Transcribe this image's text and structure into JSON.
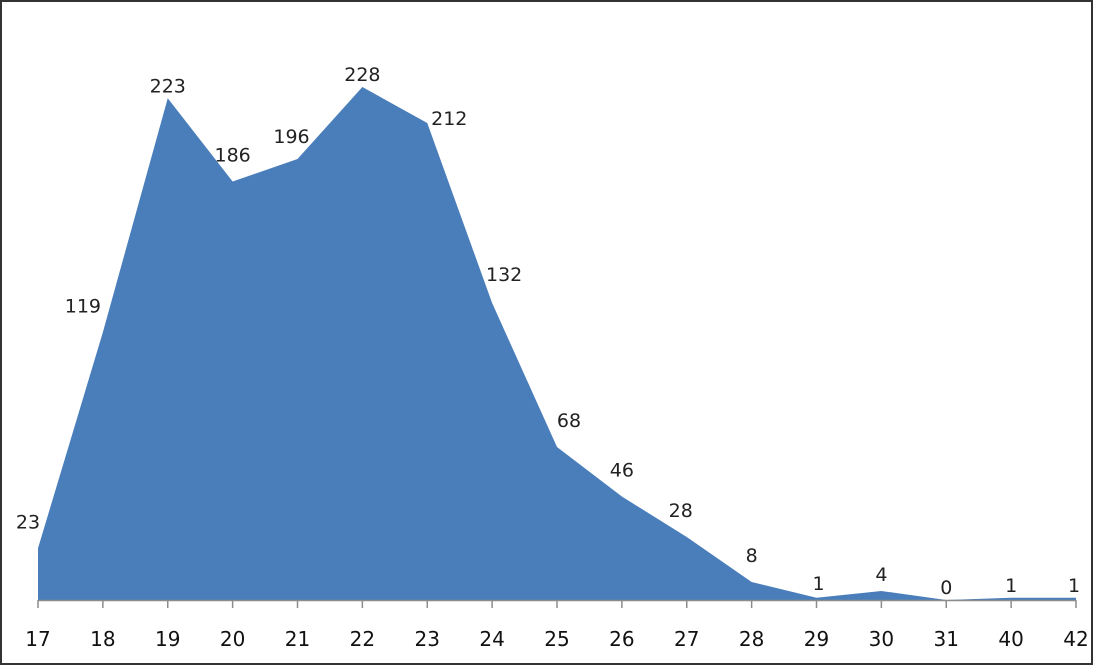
{
  "chart_data": {
    "type": "area",
    "categories": [
      "17",
      "18",
      "19",
      "20",
      "21",
      "22",
      "23",
      "24",
      "25",
      "26",
      "27",
      "28",
      "29",
      "30",
      "31",
      "40",
      "42"
    ],
    "values": [
      23,
      119,
      223,
      186,
      196,
      228,
      212,
      132,
      68,
      46,
      28,
      8,
      1,
      4,
      0,
      1,
      1
    ],
    "data_labels": [
      "23",
      "119",
      "223",
      "186",
      "196",
      "228",
      "212",
      "132",
      "68",
      "46",
      "28",
      "8",
      "1",
      "4",
      "0",
      "1",
      "1"
    ],
    "title": "",
    "xlabel": "",
    "ylabel": "",
    "ylim": [
      0,
      260
    ],
    "grid": false,
    "legend": "none",
    "colors": {
      "area": "#4a7ebb",
      "frame": "#333333",
      "axis": "#8c8c8c"
    }
  }
}
